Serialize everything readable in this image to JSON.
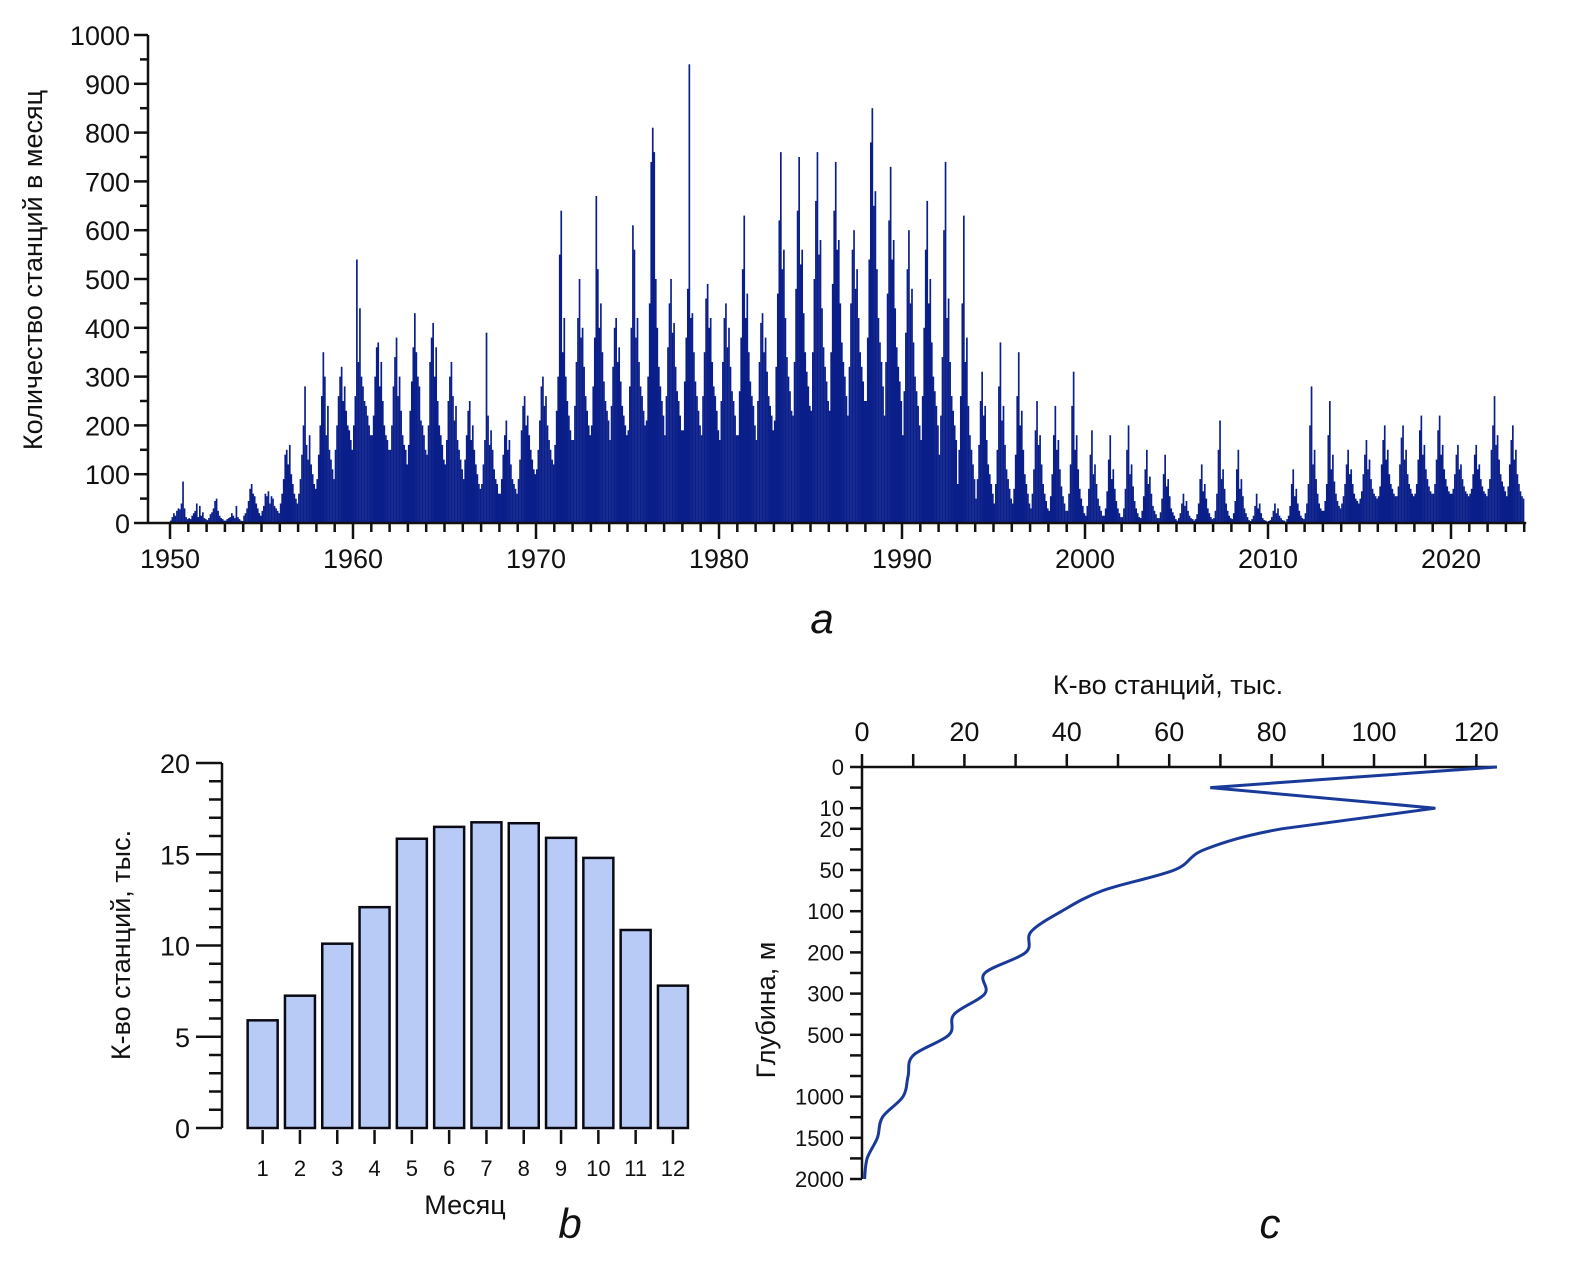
{
  "chart_data": [
    {
      "id": "a",
      "type": "bar",
      "panel_label": "a",
      "title": "",
      "xlabel": "",
      "ylabel": "Количество станций в месяц",
      "x_start": "1950-01",
      "x_step": "month",
      "xlim": [
        1950,
        2024
      ],
      "ylim": [
        0,
        1000
      ],
      "xticks": [
        1950,
        1960,
        1970,
        1980,
        1990,
        2000,
        2010,
        2020
      ],
      "yticks": [
        0,
        100,
        200,
        300,
        400,
        500,
        600,
        700,
        800,
        900,
        1000
      ],
      "grid": false,
      "color": "#0b1f8a",
      "values": [
        5,
        12,
        20,
        15,
        25,
        30,
        28,
        40,
        85,
        30,
        12,
        8,
        10,
        8,
        15,
        20,
        25,
        40,
        12,
        35,
        15,
        22,
        10,
        8,
        6,
        10,
        18,
        22,
        30,
        45,
        50,
        25,
        15,
        10,
        8,
        5,
        5,
        8,
        10,
        12,
        20,
        15,
        10,
        35,
        12,
        8,
        5,
        4,
        15,
        20,
        30,
        45,
        70,
        80,
        60,
        55,
        40,
        30,
        20,
        15,
        25,
        35,
        60,
        55,
        65,
        40,
        55,
        50,
        35,
        30,
        25,
        20,
        40,
        60,
        90,
        140,
        150,
        120,
        160,
        100,
        80,
        60,
        50,
        40,
        60,
        90,
        140,
        200,
        280,
        160,
        130,
        180,
        120,
        100,
        80,
        70,
        90,
        140,
        200,
        260,
        350,
        300,
        180,
        240,
        150,
        130,
        110,
        90,
        150,
        200,
        260,
        300,
        320,
        250,
        280,
        230,
        200,
        190,
        170,
        150,
        200,
        260,
        540,
        330,
        440,
        300,
        280,
        250,
        240,
        220,
        200,
        180,
        180,
        220,
        300,
        360,
        370,
        280,
        330,
        250,
        200,
        180,
        170,
        150,
        150,
        200,
        280,
        340,
        380,
        260,
        300,
        230,
        180,
        160,
        150,
        120,
        160,
        230,
        290,
        360,
        430,
        350,
        300,
        280,
        210,
        200,
        180,
        150,
        140,
        200,
        330,
        380,
        410,
        300,
        360,
        250,
        200,
        180,
        160,
        130,
        120,
        170,
        250,
        300,
        330,
        260,
        210,
        240,
        170,
        150,
        130,
        110,
        90,
        130,
        180,
        230,
        250,
        170,
        200,
        150,
        120,
        100,
        80,
        70,
        80,
        120,
        170,
        390,
        220,
        160,
        190,
        150,
        110,
        90,
        80,
        60,
        60,
        90,
        140,
        180,
        210,
        150,
        170,
        120,
        90,
        80,
        70,
        60,
        90,
        130,
        190,
        240,
        260,
        200,
        220,
        180,
        150,
        130,
        110,
        100,
        110,
        150,
        210,
        280,
        300,
        240,
        260,
        200,
        170,
        150,
        130,
        120,
        160,
        230,
        300,
        550,
        640,
        350,
        420,
        300,
        250,
        220,
        190,
        170,
        170,
        240,
        330,
        420,
        500,
        380,
        400,
        320,
        260,
        230,
        200,
        180,
        200,
        280,
        380,
        670,
        520,
        400,
        450,
        350,
        290,
        250,
        230,
        210,
        170,
        240,
        320,
        400,
        420,
        330,
        360,
        290,
        240,
        220,
        200,
        180,
        190,
        280,
        400,
        610,
        560,
        380,
        420,
        330,
        280,
        260,
        230,
        200,
        210,
        300,
        450,
        740,
        810,
        760,
        500,
        400,
        320,
        280,
        250,
        220,
        180,
        260,
        360,
        450,
        500,
        390,
        410,
        320,
        270,
        250,
        220,
        190,
        190,
        290,
        380,
        480,
        940,
        420,
        430,
        350,
        290,
        260,
        230,
        200,
        180,
        260,
        350,
        460,
        490,
        400,
        420,
        330,
        280,
        260,
        230,
        190,
        170,
        250,
        330,
        420,
        450,
        360,
        400,
        320,
        270,
        250,
        220,
        180,
        180,
        270,
        380,
        520,
        630,
        420,
        470,
        350,
        290,
        260,
        240,
        200,
        170,
        250,
        330,
        410,
        430,
        350,
        380,
        310,
        260,
        240,
        220,
        190,
        210,
        320,
        470,
        620,
        760,
        520,
        560,
        420,
        340,
        300,
        270,
        230,
        220,
        330,
        480,
        640,
        750,
        530,
        560,
        430,
        350,
        310,
        280,
        240,
        230,
        350,
        500,
        660,
        760,
        550,
        580,
        440,
        360,
        320,
        290,
        250,
        230,
        350,
        490,
        640,
        740,
        560,
        580,
        450,
        370,
        330,
        300,
        260,
        220,
        320,
        450,
        560,
        600,
        480,
        520,
        420,
        350,
        320,
        290,
        250,
        250,
        380,
        540,
        780,
        850,
        650,
        680,
        520,
        420,
        370,
        330,
        280,
        220,
        330,
        470,
        620,
        730,
        540,
        580,
        440,
        360,
        320,
        290,
        250,
        180,
        270,
        390,
        520,
        600,
        450,
        480,
        370,
        300,
        270,
        240,
        200,
        170,
        260,
        400,
        560,
        660,
        450,
        500,
        370,
        300,
        270,
        240,
        200,
        140,
        220,
        340,
        600,
        740,
        420,
        460,
        330,
        260,
        230,
        200,
        170,
        80,
        150,
        260,
        450,
        630,
        330,
        380,
        240,
        180,
        150,
        120,
        90,
        50,
        90,
        160,
        250,
        310,
        220,
        240,
        170,
        120,
        100,
        80,
        60,
        40,
        80,
        150,
        280,
        370,
        210,
        240,
        160,
        110,
        90,
        70,
        50,
        40,
        70,
        140,
        260,
        350,
        200,
        230,
        150,
        100,
        80,
        60,
        40,
        30,
        60,
        110,
        190,
        250,
        160,
        180,
        120,
        80,
        60,
        45,
        30,
        25,
        55,
        100,
        180,
        240,
        150,
        170,
        110,
        75,
        55,
        40,
        25,
        25,
        60,
        120,
        240,
        310,
        150,
        180,
        110,
        70,
        50,
        35,
        20,
        15,
        35,
        70,
        140,
        190,
        100,
        120,
        80,
        50,
        35,
        25,
        15,
        15,
        30,
        65,
        130,
        180,
        90,
        110,
        70,
        45,
        30,
        20,
        12,
        12,
        30,
        70,
        150,
        200,
        100,
        120,
        75,
        45,
        30,
        20,
        12,
        10,
        25,
        55,
        110,
        150,
        80,
        95,
        60,
        35,
        25,
        18,
        10,
        10,
        22,
        50,
        100,
        140,
        75,
        90,
        55,
        30,
        22,
        15,
        8,
        5,
        10,
        20,
        40,
        60,
        35,
        45,
        25,
        15,
        10,
        8,
        5,
        8,
        18,
        40,
        90,
        120,
        65,
        80,
        50,
        30,
        20,
        12,
        8,
        10,
        25,
        60,
        150,
        210,
        90,
        110,
        70,
        40,
        25,
        15,
        10,
        8,
        20,
        45,
        110,
        150,
        70,
        90,
        55,
        30,
        20,
        12,
        6,
        4,
        8,
        15,
        35,
        60,
        30,
        40,
        20,
        10,
        6,
        5,
        3,
        4,
        6,
        12,
        25,
        40,
        20,
        30,
        15,
        10,
        6,
        5,
        3,
        8,
        15,
        35,
        80,
        110,
        55,
        70,
        40,
        25,
        15,
        10,
        8,
        20,
        40,
        80,
        200,
        280,
        120,
        150,
        90,
        60,
        40,
        30,
        25,
        25,
        45,
        80,
        180,
        250,
        110,
        140,
        85,
        60,
        45,
        35,
        30,
        40,
        55,
        80,
        120,
        150,
        100,
        110,
        80,
        60,
        50,
        45,
        40,
        50,
        65,
        100,
        140,
        170,
        110,
        130,
        90,
        70,
        60,
        55,
        50,
        55,
        75,
        120,
        170,
        200,
        130,
        150,
        100,
        80,
        70,
        60,
        55,
        55,
        75,
        120,
        175,
        200,
        130,
        150,
        100,
        80,
        70,
        60,
        55,
        60,
        80,
        130,
        190,
        220,
        140,
        160,
        110,
        90,
        75,
        65,
        60,
        60,
        80,
        130,
        190,
        220,
        140,
        160,
        110,
        90,
        75,
        65,
        60,
        60,
        70,
        100,
        140,
        160,
        110,
        120,
        90,
        75,
        65,
        60,
        55,
        60,
        70,
        100,
        140,
        160,
        110,
        120,
        90,
        75,
        65,
        60,
        55,
        70,
        90,
        150,
        200,
        260,
        160,
        180,
        130,
        100,
        85,
        75,
        65,
        55,
        75,
        120,
        170,
        200,
        130,
        150,
        100,
        80,
        65,
        55,
        50
      ]
    },
    {
      "id": "b",
      "type": "bar",
      "panel_label": "b",
      "title": "",
      "xlabel": "Месяц",
      "ylabel": "К-во станций, тыс.",
      "categories": [
        "1",
        "2",
        "3",
        "4",
        "5",
        "6",
        "7",
        "8",
        "9",
        "10",
        "11",
        "12"
      ],
      "values": [
        5.9,
        7.25,
        10.1,
        12.1,
        15.85,
        16.5,
        16.75,
        16.7,
        15.9,
        14.8,
        10.85,
        7.8
      ],
      "ylim": [
        0,
        20
      ],
      "yticks": [
        0,
        5,
        10,
        15,
        20
      ],
      "grid": false,
      "color": "#b8cbf7"
    },
    {
      "id": "c",
      "type": "line",
      "panel_label": "c",
      "title": "",
      "xlabel": "К-во станций, тыс.",
      "ylabel": "Глубина, м",
      "xlim": [
        0,
        124
      ],
      "xticks": [
        0,
        20,
        40,
        60,
        80,
        100,
        120
      ],
      "depth_levels": [
        0,
        5,
        10,
        20,
        30,
        50,
        75,
        100,
        150,
        200,
        250,
        300,
        400,
        500,
        600,
        800,
        1000,
        1200,
        1500,
        1750,
        2000
      ],
      "labeled_depths": [
        0,
        10,
        20,
        50,
        100,
        200,
        300,
        500,
        1000,
        1500,
        2000
      ],
      "values": [
        124,
        68,
        112,
        82,
        67,
        61,
        47,
        39,
        33,
        32,
        24,
        24,
        18,
        17,
        10,
        9,
        8,
        4,
        3,
        1,
        0.5
      ],
      "grid": false,
      "color": "#1a3a9a"
    }
  ]
}
